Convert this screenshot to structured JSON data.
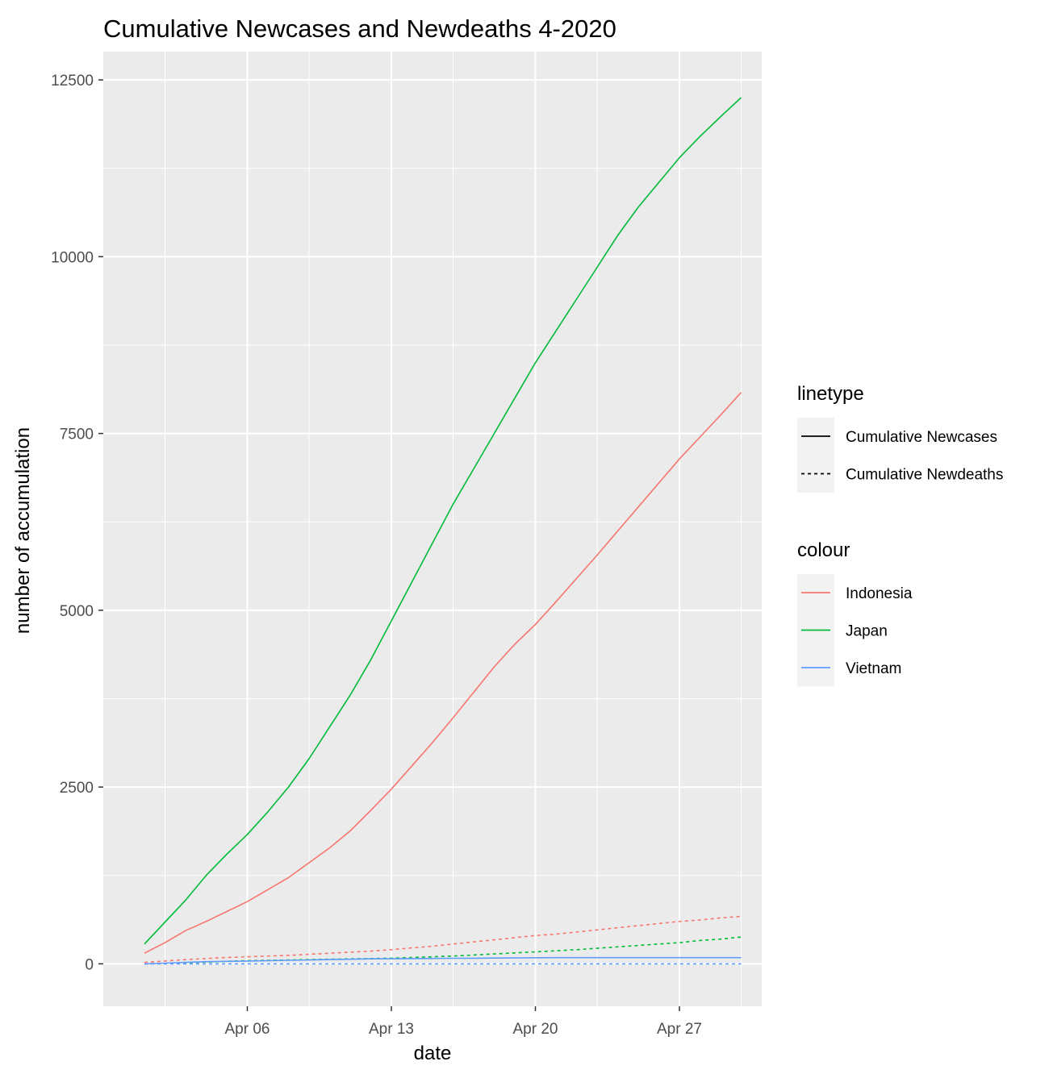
{
  "chart_data": {
    "type": "line",
    "title": "Cumulative Newcases and Newdeaths 4-2020",
    "xlabel": "date",
    "ylabel": "number of accumulation",
    "x_ticks": [
      "Apr 06",
      "Apr 13",
      "Apr 20",
      "Apr 27"
    ],
    "y_ticks": [
      "0",
      "2500",
      "5000",
      "7500",
      "10000",
      "12500"
    ],
    "ylim": [
      -600,
      12900
    ],
    "xlim": [
      "2020-03-30",
      "2020-05-01"
    ],
    "grid": true,
    "legend_position": "right",
    "x": [
      "2020-04-01",
      "2020-04-02",
      "2020-04-03",
      "2020-04-04",
      "2020-04-05",
      "2020-04-06",
      "2020-04-07",
      "2020-04-08",
      "2020-04-09",
      "2020-04-10",
      "2020-04-11",
      "2020-04-12",
      "2020-04-13",
      "2020-04-14",
      "2020-04-15",
      "2020-04-16",
      "2020-04-17",
      "2020-04-18",
      "2020-04-19",
      "2020-04-20",
      "2020-04-21",
      "2020-04-22",
      "2020-04-23",
      "2020-04-24",
      "2020-04-25",
      "2020-04-26",
      "2020-04-27",
      "2020-04-28",
      "2020-04-29",
      "2020-04-30"
    ],
    "legends": [
      {
        "title": "linetype",
        "entries": [
          {
            "label": "Cumulative Newcases",
            "dash": "solid"
          },
          {
            "label": "Cumulative Newdeaths",
            "dash": "dotted"
          }
        ]
      },
      {
        "title": "colour",
        "entries": [
          {
            "label": "Indonesia",
            "color": "#F8766D"
          },
          {
            "label": "Japan",
            "color": "#00BA38"
          },
          {
            "label": "Vietnam",
            "color": "#619CFF"
          }
        ]
      }
    ],
    "series": [
      {
        "country": "Indonesia",
        "measure": "Cumulative Newcases",
        "color": "#F8766D",
        "dash": "solid",
        "values": [
          150,
          300,
          470,
          600,
          740,
          880,
          1050,
          1220,
          1430,
          1640,
          1880,
          2170,
          2470,
          2800,
          3130,
          3480,
          3840,
          4200,
          4520,
          4800,
          5120,
          5450,
          5780,
          6120,
          6460,
          6800,
          7140,
          7450,
          7760,
          8080
        ]
      },
      {
        "country": "Indonesia",
        "measure": "Cumulative Newdeaths",
        "color": "#F8766D",
        "dash": "dotted",
        "values": [
          20,
          40,
          60,
          75,
          90,
          100,
          110,
          120,
          135,
          150,
          165,
          180,
          200,
          225,
          250,
          280,
          310,
          340,
          370,
          400,
          420,
          450,
          480,
          510,
          540,
          570,
          600,
          620,
          650,
          670
        ]
      },
      {
        "country": "Japan",
        "measure": "Cumulative Newcases",
        "color": "#00BA38",
        "dash": "solid",
        "values": [
          280,
          590,
          900,
          1250,
          1550,
          1830,
          2150,
          2500,
          2900,
          3350,
          3800,
          4300,
          4850,
          5400,
          5950,
          6500,
          7000,
          7500,
          8000,
          8500,
          8950,
          9400,
          9850,
          10300,
          10700,
          11050,
          11400,
          11700,
          11980,
          12250
        ]
      },
      {
        "country": "Japan",
        "measure": "Cumulative Newdeaths",
        "color": "#00BA38",
        "dash": "dotted",
        "values": [
          0,
          5,
          15,
          25,
          35,
          45,
          50,
          55,
          60,
          65,
          70,
          75,
          80,
          90,
          100,
          110,
          125,
          140,
          155,
          170,
          185,
          200,
          220,
          240,
          260,
          280,
          300,
          330,
          350,
          380
        ]
      },
      {
        "country": "Vietnam",
        "measure": "Cumulative Newcases",
        "color": "#619CFF",
        "dash": "solid",
        "values": [
          0,
          10,
          20,
          30,
          35,
          40,
          45,
          50,
          55,
          60,
          65,
          70,
          72,
          74,
          76,
          78,
          80,
          82,
          84,
          86,
          88,
          88,
          88,
          88,
          88,
          88,
          88,
          88,
          88,
          88
        ]
      },
      {
        "country": "Vietnam",
        "measure": "Cumulative Newdeaths",
        "color": "#619CFF",
        "dash": "dotted",
        "values": [
          0,
          0,
          0,
          0,
          0,
          0,
          0,
          0,
          0,
          0,
          0,
          0,
          0,
          0,
          0,
          0,
          0,
          0,
          0,
          0,
          0,
          0,
          0,
          0,
          0,
          0,
          0,
          0,
          0,
          0
        ]
      }
    ]
  }
}
